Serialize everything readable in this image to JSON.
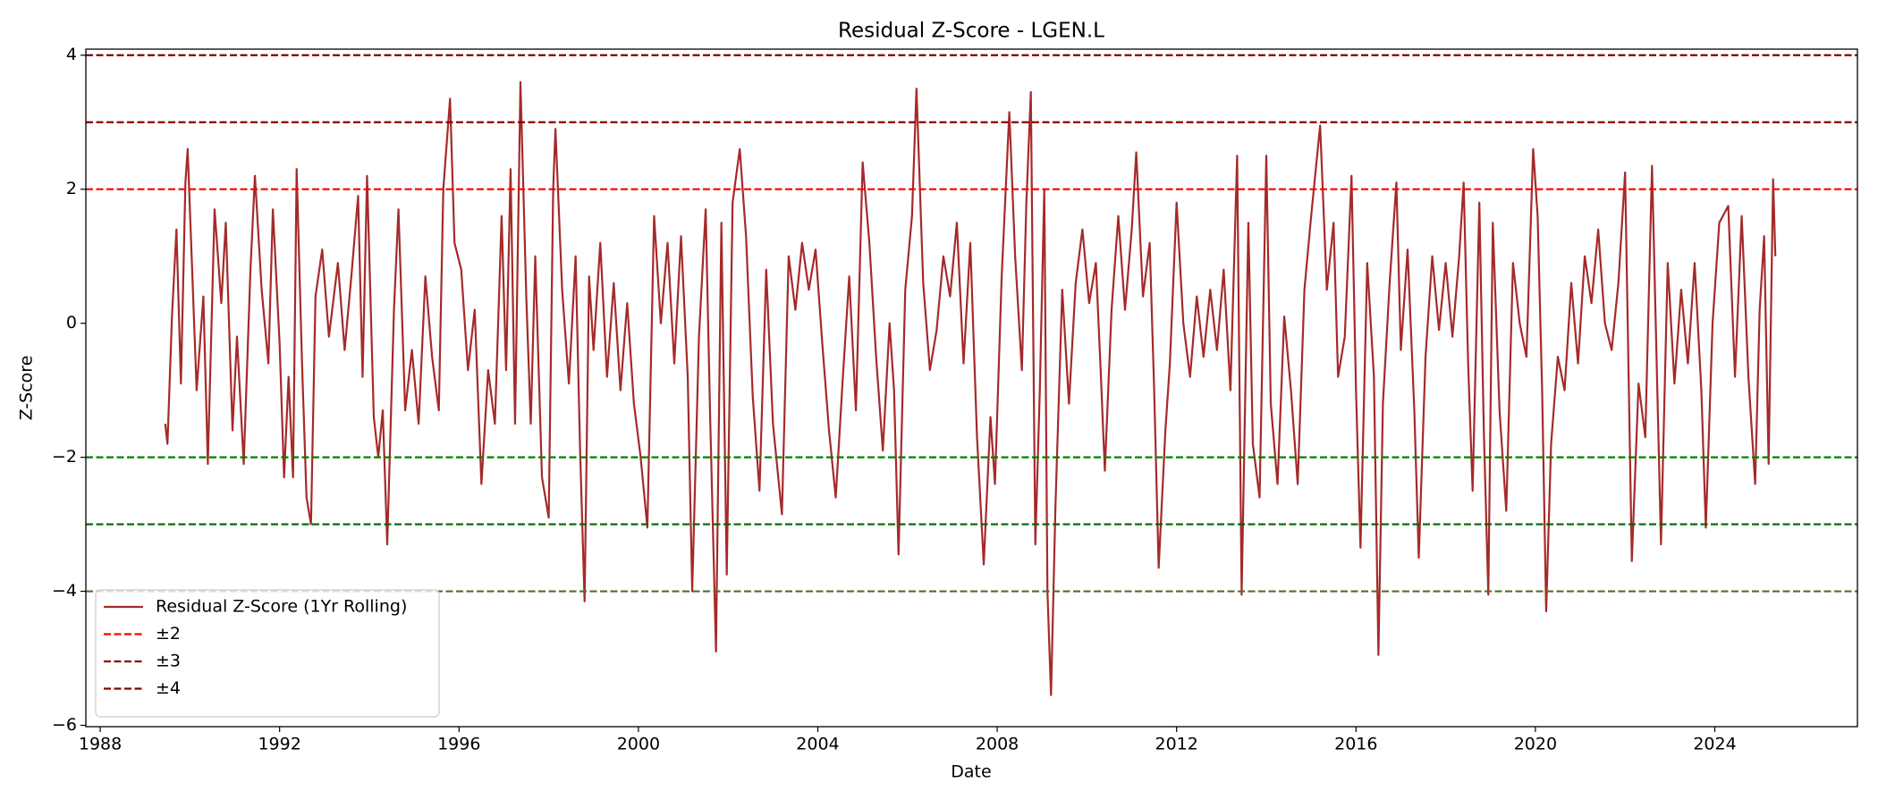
{
  "chart_data": {
    "type": "line",
    "title": "Residual Z-Score - LGEN.L",
    "x_label": "Date",
    "y_label": "Z-Score",
    "xlim": [
      1987.68,
      2027.18
    ],
    "ylim": [
      -6.02,
      4.09
    ],
    "xticks": [
      1988,
      1992,
      1996,
      2000,
      2004,
      2008,
      2012,
      2016,
      2020,
      2024
    ],
    "yticks": [
      {
        "value": -6,
        "label": "−6"
      },
      {
        "value": -4,
        "label": "−4"
      },
      {
        "value": -2,
        "label": "−2"
      },
      0,
      2,
      4
    ],
    "grid": false,
    "legend": "lower left",
    "x": [
      1989.45,
      1989.5,
      1989.6,
      1989.7,
      1989.8,
      1989.9,
      1989.95,
      1990.05,
      1990.15,
      1990.3,
      1990.4,
      1990.55,
      1990.7,
      1990.8,
      1990.95,
      1991.05,
      1991.2,
      1991.35,
      1991.45,
      1991.6,
      1991.75,
      1991.85,
      1992.0,
      1992.1,
      1992.2,
      1992.3,
      1992.38,
      1992.5,
      1992.6,
      1992.7,
      1992.8,
      1992.95,
      1993.1,
      1993.3,
      1993.45,
      1993.6,
      1993.75,
      1993.85,
      1993.95,
      1994.1,
      1994.2,
      1994.3,
      1994.4,
      1994.55,
      1994.65,
      1994.8,
      1994.95,
      1995.1,
      1995.25,
      1995.4,
      1995.55,
      1995.65,
      1995.8,
      1995.9,
      1996.05,
      1996.2,
      1996.35,
      1996.5,
      1996.65,
      1996.8,
      1996.95,
      1997.05,
      1997.15,
      1997.25,
      1997.37,
      1997.5,
      1997.6,
      1997.7,
      1997.85,
      1998.0,
      1998.1,
      1998.15,
      1998.3,
      1998.45,
      1998.6,
      1998.7,
      1998.8,
      1998.9,
      1999.0,
      1999.15,
      1999.3,
      1999.45,
      1999.6,
      1999.75,
      1999.9,
      2000.05,
      2000.2,
      2000.35,
      2000.5,
      2000.65,
      2000.8,
      2000.95,
      2001.1,
      2001.2,
      2001.35,
      2001.5,
      2001.6,
      2001.73,
      2001.85,
      2001.97,
      2002.1,
      2002.26,
      2002.4,
      2002.55,
      2002.7,
      2002.85,
      2003.0,
      2003.2,
      2003.35,
      2003.5,
      2003.65,
      2003.8,
      2003.95,
      2004.1,
      2004.25,
      2004.4,
      2004.55,
      2004.7,
      2004.85,
      2005.0,
      2005.15,
      2005.3,
      2005.45,
      2005.6,
      2005.7,
      2005.8,
      2005.95,
      2006.1,
      2006.2,
      2006.35,
      2006.5,
      2006.65,
      2006.8,
      2006.95,
      2007.1,
      2007.25,
      2007.4,
      2007.55,
      2007.7,
      2007.85,
      2007.95,
      2008.1,
      2008.27,
      2008.4,
      2008.55,
      2008.65,
      2008.75,
      2008.85,
      2008.95,
      2009.05,
      2009.12,
      2009.2,
      2009.3,
      2009.45,
      2009.6,
      2009.75,
      2009.9,
      2010.05,
      2010.2,
      2010.3,
      2010.4,
      2010.55,
      2010.7,
      2010.85,
      2011.0,
      2011.1,
      2011.25,
      2011.4,
      2011.5,
      2011.6,
      2011.75,
      2011.85,
      2012.0,
      2012.15,
      2012.3,
      2012.45,
      2012.6,
      2012.75,
      2012.9,
      2013.05,
      2013.2,
      2013.35,
      2013.45,
      2013.6,
      2013.7,
      2013.85,
      2014.0,
      2014.1,
      2014.25,
      2014.4,
      2014.55,
      2014.7,
      2014.85,
      2015.0,
      2015.2,
      2015.35,
      2015.5,
      2015.6,
      2015.75,
      2015.9,
      2016.0,
      2016.1,
      2016.25,
      2016.4,
      2016.5,
      2016.6,
      2016.75,
      2016.9,
      2017.0,
      2017.15,
      2017.3,
      2017.4,
      2017.55,
      2017.7,
      2017.85,
      2018.0,
      2018.15,
      2018.3,
      2018.4,
      2018.5,
      2018.6,
      2018.75,
      2018.85,
      2018.95,
      2019.05,
      2019.2,
      2019.35,
      2019.5,
      2019.65,
      2019.8,
      2019.95,
      2020.05,
      2020.15,
      2020.24,
      2020.35,
      2020.5,
      2020.65,
      2020.8,
      2020.95,
      2021.1,
      2021.25,
      2021.4,
      2021.55,
      2021.7,
      2021.85,
      2022.0,
      2022.15,
      2022.3,
      2022.45,
      2022.6,
      2022.8,
      2022.95,
      2023.1,
      2023.25,
      2023.4,
      2023.55,
      2023.7,
      2023.8,
      2023.95,
      2024.1,
      2024.3,
      2024.45,
      2024.6,
      2024.75,
      2024.9,
      2025.0,
      2025.1,
      2025.2,
      2025.3,
      2025.35
    ],
    "series": [
      {
        "name": "Residual Z-Score (1Yr Rolling)",
        "color": "#a52a2a",
        "values": [
          -1.5,
          -1.8,
          0.1,
          1.4,
          -0.9,
          2.1,
          2.6,
          0.8,
          -1.0,
          0.4,
          -2.1,
          1.7,
          0.3,
          1.5,
          -1.6,
          -0.2,
          -2.1,
          0.8,
          2.2,
          0.5,
          -0.6,
          1.7,
          -0.3,
          -2.3,
          -0.8,
          -2.3,
          2.3,
          -0.6,
          -2.6,
          -3.0,
          0.4,
          1.1,
          -0.2,
          0.9,
          -0.4,
          0.7,
          1.9,
          -0.8,
          2.2,
          -1.4,
          -2.0,
          -1.3,
          -3.3,
          0.2,
          1.7,
          -1.3,
          -0.4,
          -1.5,
          0.7,
          -0.5,
          -1.3,
          2.0,
          3.35,
          1.2,
          0.8,
          -0.7,
          0.2,
          -2.4,
          -0.7,
          -1.5,
          1.6,
          -0.7,
          2.3,
          -1.5,
          3.6,
          0.4,
          -1.5,
          1.0,
          -2.3,
          -2.9,
          2.0,
          2.9,
          0.5,
          -0.9,
          1.0,
          -1.9,
          -4.15,
          0.7,
          -0.4,
          1.2,
          -0.8,
          0.6,
          -1.0,
          0.3,
          -1.2,
          -2.0,
          -3.05,
          1.6,
          0.0,
          1.2,
          -0.6,
          1.3,
          -0.8,
          -4.0,
          -0.2,
          1.7,
          -1.4,
          -4.9,
          1.5,
          -3.75,
          1.8,
          2.6,
          1.3,
          -1.1,
          -2.5,
          0.8,
          -1.5,
          -2.85,
          1.0,
          0.2,
          1.2,
          0.5,
          1.1,
          -0.3,
          -1.6,
          -2.6,
          -0.9,
          0.7,
          -1.3,
          2.4,
          1.2,
          -0.5,
          -1.9,
          0.0,
          -1.0,
          -3.45,
          0.5,
          1.6,
          3.5,
          0.6,
          -0.7,
          -0.1,
          1.0,
          0.4,
          1.5,
          -0.6,
          1.2,
          -1.7,
          -3.6,
          -1.4,
          -2.4,
          0.7,
          3.15,
          1.0,
          -0.7,
          1.8,
          3.45,
          -3.3,
          -1.0,
          2.0,
          -4.0,
          -5.55,
          -2.7,
          0.5,
          -1.2,
          0.6,
          1.4,
          0.3,
          0.9,
          -0.6,
          -2.2,
          0.2,
          1.6,
          0.2,
          1.4,
          2.55,
          0.4,
          1.2,
          -1.0,
          -3.65,
          -1.6,
          -0.6,
          1.8,
          0.0,
          -0.8,
          0.4,
          -0.5,
          0.5,
          -0.4,
          0.8,
          -1.0,
          2.5,
          -4.05,
          1.5,
          -1.8,
          -2.6,
          2.5,
          -1.2,
          -2.4,
          0.1,
          -1.0,
          -2.4,
          0.5,
          1.6,
          2.95,
          0.5,
          1.5,
          -0.8,
          -0.2,
          2.2,
          -1.0,
          -3.35,
          0.9,
          -0.8,
          -4.95,
          -1.2,
          0.6,
          2.1,
          -0.4,
          1.1,
          -1.3,
          -3.5,
          -0.5,
          1.0,
          -0.1,
          0.9,
          -0.2,
          1.0,
          2.1,
          -0.6,
          -2.5,
          1.8,
          -1.6,
          -4.05,
          1.5,
          -1.3,
          -2.8,
          0.9,
          0.0,
          -0.5,
          2.6,
          1.6,
          -1.0,
          -4.3,
          -1.8,
          -0.5,
          -1.0,
          0.6,
          -0.6,
          1.0,
          0.3,
          1.4,
          0.0,
          -0.4,
          0.6,
          2.25,
          -3.55,
          -0.9,
          -1.7,
          2.35,
          -3.3,
          0.9,
          -0.9,
          0.5,
          -0.6,
          0.9,
          -1.0,
          -3.05,
          0.0,
          1.5,
          1.75,
          -0.8,
          1.6,
          -0.8,
          -2.4,
          0.2,
          1.3,
          -2.1,
          2.15,
          1.0
        ]
      }
    ],
    "hlines": [
      {
        "name": "±2",
        "values": [
          2,
          -2
        ],
        "colors": [
          "#ff0000",
          "#008000"
        ]
      },
      {
        "name": "±3",
        "values": [
          3,
          -3
        ],
        "colors": [
          "#8b0000",
          "#006400"
        ]
      },
      {
        "name": "±4",
        "values": [
          4,
          -4
        ],
        "colors": [
          "#800000",
          "#556b2f"
        ]
      }
    ]
  }
}
